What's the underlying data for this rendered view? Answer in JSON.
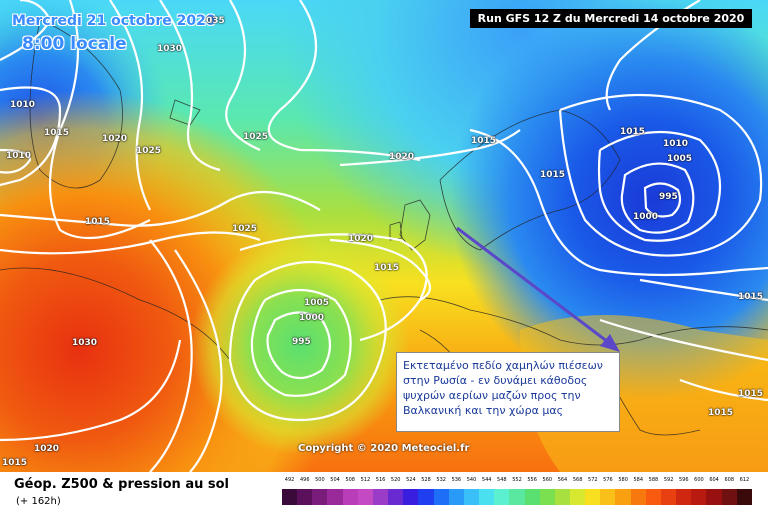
{
  "header": {
    "date": "Mercredi 21 octobre 2020",
    "time": "8:00 locale",
    "run": "Run GFS 12 Z du Mercredi 14 octobre 2020"
  },
  "isobar_labels": [
    {
      "name": "nw-1030",
      "value": "1030"
    },
    {
      "name": "top-1035",
      "value": "035"
    },
    {
      "name": "w-1010a",
      "value": "1010"
    },
    {
      "name": "w-1010b",
      "value": "1010"
    },
    {
      "name": "w-1015",
      "value": "1015"
    },
    {
      "name": "w-1020",
      "value": "1020"
    },
    {
      "name": "w-1025",
      "value": "1025"
    },
    {
      "name": "c-1025",
      "value": "1025"
    },
    {
      "name": "atl-1015",
      "value": "1015"
    },
    {
      "name": "atl-1025",
      "value": "1025"
    },
    {
      "name": "n-1020",
      "value": "1020"
    },
    {
      "name": "uk-1020",
      "value": "1020"
    },
    {
      "name": "uk-1015",
      "value": "1015"
    },
    {
      "name": "nor-1015",
      "value": "1015"
    },
    {
      "name": "scan-1015",
      "value": "1015"
    },
    {
      "name": "rus-1015",
      "value": "1015"
    },
    {
      "name": "rus-1010",
      "value": "1010"
    },
    {
      "name": "rus-1005",
      "value": "1005"
    },
    {
      "name": "rus-995",
      "value": "995"
    },
    {
      "name": "rus-1000",
      "value": "1000"
    },
    {
      "name": "e-1015a",
      "value": "1015"
    },
    {
      "name": "e-1015b",
      "value": "1015"
    },
    {
      "name": "e-1015c",
      "value": "1015"
    },
    {
      "name": "low-1005",
      "value": "1005"
    },
    {
      "name": "low-1000",
      "value": "1000"
    },
    {
      "name": "low-995",
      "value": "995"
    },
    {
      "name": "azores-1030",
      "value": "1030"
    },
    {
      "name": "sw-1020",
      "value": "1020"
    },
    {
      "name": "sw-1015",
      "value": "1015"
    }
  ],
  "annotation": {
    "line1": "Εκτεταμένο πεδίο χαμηλών πιέσεων",
    "line2": "στην Ρωσία - εν δυνάμει κάθοδος",
    "line3": "ψυχρών αερίων μαζών προς την",
    "line4": "Βαλκανική και την χώρα μας"
  },
  "copyright": "Copyright © 2020 Meteociel.fr",
  "footer": {
    "title": "Géop. Z500 & pression au sol",
    "subtitle": "(+ 162h)"
  },
  "scale": {
    "labels": [
      "492",
      "496",
      "500",
      "504",
      "508",
      "512",
      "516",
      "520",
      "524",
      "528",
      "532",
      "536",
      "540",
      "544",
      "548",
      "552",
      "556",
      "560",
      "564",
      "568",
      "572",
      "576",
      "580",
      "584",
      "588",
      "592",
      "596",
      "600",
      "604",
      "608",
      "612"
    ],
    "colors": [
      "#3a0a3a",
      "#5a105a",
      "#7a1c7a",
      "#9a2a9a",
      "#b93cb9",
      "#c34ac3",
      "#9a3cc8",
      "#6a2ad2",
      "#3a1ee0",
      "#1e3ef0",
      "#1e6ef8",
      "#2a9af8",
      "#3ac0f8",
      "#4ae0f0",
      "#5af0d0",
      "#5ae8a0",
      "#5ae070",
      "#7ae050",
      "#a8e040",
      "#d8e830",
      "#f8e020",
      "#f8c018",
      "#f8a010",
      "#f87810",
      "#f85a10",
      "#e84010",
      "#d02810",
      "#b81a10",
      "#981010",
      "#701010",
      "#3a0a0a"
    ]
  },
  "colors": {
    "isoline": "#ffffff",
    "arrow": "#5a48c8",
    "title_blue": "#3a8bff"
  }
}
